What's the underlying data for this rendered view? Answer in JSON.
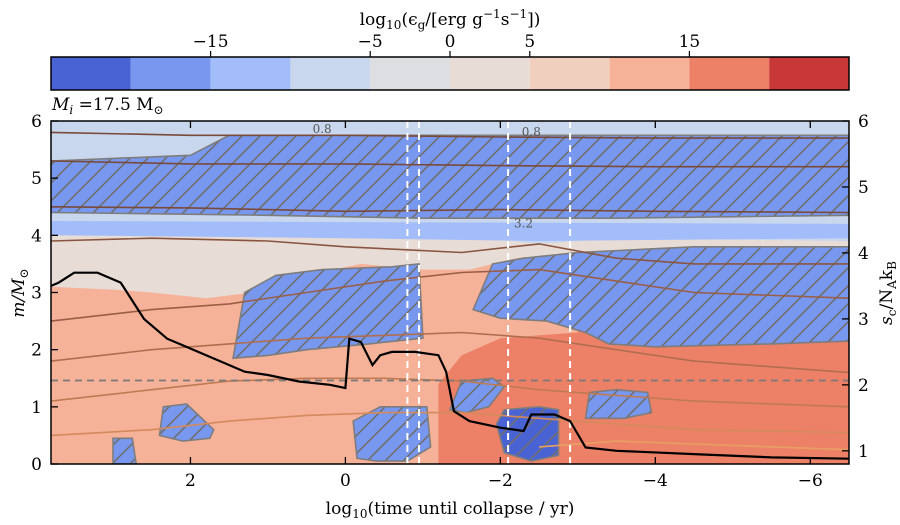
{
  "chart_data": {
    "type": "heatmap",
    "colorbar": {
      "label_main": "log",
      "label_sub": "10",
      "label_rest": "(ϵ",
      "label_g": "g",
      "label_units": "/[erg g",
      "label_sup1": "−1",
      "label_s": "s",
      "label_sup2": "−1",
      "label_end": "])",
      "range": [
        -25,
        25
      ],
      "levels": [
        -25,
        -20,
        -15,
        -10,
        -5,
        0,
        5,
        10,
        15,
        20,
        25
      ],
      "colors": [
        "#4a63d4",
        "#7898f0",
        "#a3bdfa",
        "#c8d6ee",
        "#dcdee2",
        "#e8dcd6",
        "#f0cfbf",
        "#f6b199",
        "#ec8168",
        "#c93838"
      ],
      "ticks": [
        {
          "value": -15,
          "label": "−15"
        },
        {
          "value": -5,
          "label": "−5"
        },
        {
          "value": 0,
          "label": "0"
        },
        {
          "value": 5,
          "label": "5"
        },
        {
          "value": 15,
          "label": "15"
        }
      ]
    },
    "panel_label_prefix": "M",
    "panel_label_sub": "i",
    "panel_label_value": " =17.5 M",
    "panel_label_sun": "⊙",
    "xlabel_main": "log",
    "xlabel_sub": "10",
    "xlabel_rest": "(time until collapse / yr)",
    "ylabel_main": "m/M",
    "ylabel_sun": "⊙",
    "y2label_main": "s",
    "y2label_sub": "c",
    "y2label_rest": "/N",
    "y2label_sub2": "A",
    "y2label_k": "k",
    "y2label_sub3": "B",
    "xlim": [
      3.8,
      -6.5
    ],
    "ylim": [
      0,
      6
    ],
    "y2lim": [
      0.8,
      6
    ],
    "xticks": [
      {
        "value": 2,
        "label": "2"
      },
      {
        "value": 0,
        "label": "0"
      },
      {
        "value": -2,
        "label": "−2"
      },
      {
        "value": -4,
        "label": "−4"
      },
      {
        "value": -6,
        "label": "−6"
      }
    ],
    "yticks": [
      {
        "value": 0,
        "label": "0"
      },
      {
        "value": 1,
        "label": "1"
      },
      {
        "value": 2,
        "label": "2"
      },
      {
        "value": 3,
        "label": "3"
      },
      {
        "value": 4,
        "label": "4"
      },
      {
        "value": 5,
        "label": "5"
      },
      {
        "value": 6,
        "label": "6"
      }
    ],
    "y2ticks": [
      {
        "value": 1,
        "label": "1"
      },
      {
        "value": 2,
        "label": "2"
      },
      {
        "value": 3,
        "label": "3"
      },
      {
        "value": 4,
        "label": "4"
      },
      {
        "value": 5,
        "label": "5"
      },
      {
        "value": 6,
        "label": "6"
      }
    ],
    "vertical_dashed_lines": [
      -0.8,
      -0.95,
      -2.1,
      -2.9
    ],
    "horizontal_dashed_line_y": 1.46,
    "contour_labels": [
      {
        "x": -2.4,
        "y": 5.95,
        "text": "0.8"
      },
      {
        "x": -2.3,
        "y": 4.35,
        "text": "3.2"
      },
      {
        "x": 0.3,
        "y": 6.0,
        "text": "0.8"
      }
    ],
    "regions": [
      {
        "level": 0.5,
        "color_index": 5,
        "poly": [
          [
            3.8,
            3.2
          ],
          [
            3.8,
            4.0
          ],
          [
            1.2,
            4.0
          ],
          [
            0.8,
            3.7
          ],
          [
            0,
            3.6
          ],
          [
            -1.0,
            3.5
          ],
          [
            -2.0,
            3.6
          ],
          [
            -2.5,
            3.8
          ],
          [
            -3.5,
            3.9
          ],
          [
            -6.5,
            3.9
          ],
          [
            -6.5,
            0
          ],
          [
            3.8,
            0
          ]
        ]
      },
      {
        "level": 0.5,
        "color_index": 7,
        "poly": [
          [
            3.8,
            0
          ],
          [
            3.8,
            3.1
          ],
          [
            3.0,
            3.05
          ],
          [
            2.5,
            3.0
          ],
          [
            1.8,
            2.9
          ],
          [
            1.2,
            3.0
          ],
          [
            0.5,
            3.3
          ],
          [
            -0.2,
            3.5
          ],
          [
            -1.0,
            3.4
          ],
          [
            -1.6,
            3.4
          ],
          [
            -2.2,
            3.6
          ],
          [
            -3.0,
            3.7
          ],
          [
            -6.5,
            3.7
          ],
          [
            -6.5,
            0
          ]
        ]
      },
      {
        "level": 0.5,
        "color_index": 8,
        "poly": [
          [
            -1.2,
            0
          ],
          [
            -1.2,
            1.4
          ],
          [
            -1.5,
            1.9
          ],
          [
            -2.0,
            2.2
          ],
          [
            -3.0,
            2.3
          ],
          [
            -4.0,
            2.1
          ],
          [
            -6.5,
            2.0
          ],
          [
            -6.5,
            0
          ]
        ]
      },
      {
        "level": 0.5,
        "color_index": 8,
        "poly": [
          [
            -3.0,
            3.0
          ],
          [
            -3.4,
            3.2
          ],
          [
            -4.2,
            3.3
          ],
          [
            -6.5,
            3.3
          ],
          [
            -6.5,
            0.4
          ],
          [
            -4.0,
            0.5
          ],
          [
            -3.0,
            0.6
          ]
        ]
      },
      {
        "level": 0.5,
        "color_index": 3,
        "poly": [
          [
            3.8,
            4.0
          ],
          [
            3.8,
            6.0
          ],
          [
            -6.5,
            6.0
          ],
          [
            -6.5,
            3.9
          ],
          [
            -3.5,
            3.95
          ],
          [
            -2.5,
            3.85
          ],
          [
            -1.8,
            3.95
          ],
          [
            -0.5,
            4.0
          ],
          [
            0.8,
            4.05
          ],
          [
            1.5,
            4.1
          ]
        ]
      },
      {
        "level": 0.5,
        "color_index": 2,
        "poly": [
          [
            3.8,
            4.0
          ],
          [
            3.8,
            4.25
          ],
          [
            -6.5,
            4.2
          ],
          [
            -6.5,
            3.95
          ],
          [
            -2.5,
            3.9
          ],
          [
            0,
            3.95
          ]
        ]
      }
    ],
    "hatched_regions": [
      {
        "color_index": 1,
        "poly": [
          [
            3.8,
            4.4
          ],
          [
            3.8,
            5.3
          ],
          [
            2.0,
            5.4
          ],
          [
            1.5,
            5.75
          ],
          [
            -6.5,
            5.75
          ],
          [
            -6.5,
            4.35
          ],
          [
            -3.5,
            4.3
          ],
          [
            -1.0,
            4.3
          ],
          [
            1.0,
            4.35
          ]
        ]
      },
      {
        "color_index": 1,
        "poly": [
          [
            1.45,
            1.85
          ],
          [
            1.3,
            3.0
          ],
          [
            0.9,
            3.3
          ],
          [
            0.3,
            3.4
          ],
          [
            -0.6,
            3.45
          ],
          [
            -0.95,
            3.5
          ],
          [
            -1.0,
            2.2
          ],
          [
            -0.3,
            2.1
          ],
          [
            0.5,
            2.0
          ],
          [
            1.0,
            1.9
          ]
        ]
      },
      {
        "color_index": 1,
        "poly": [
          [
            -1.65,
            2.7
          ],
          [
            -1.9,
            3.5
          ],
          [
            -2.3,
            3.6
          ],
          [
            -3.0,
            3.7
          ],
          [
            -4.5,
            3.8
          ],
          [
            -6.5,
            3.8
          ],
          [
            -6.5,
            2.15
          ],
          [
            -5.5,
            2.1
          ],
          [
            -4.0,
            2.05
          ],
          [
            -3.4,
            2.1
          ],
          [
            -3.1,
            2.3
          ],
          [
            -2.6,
            2.5
          ],
          [
            -2.0,
            2.55
          ]
        ]
      },
      {
        "color_index": 0,
        "poly": [
          [
            -1.95,
            0.7
          ],
          [
            -2.05,
            0.95
          ],
          [
            -2.5,
            1.0
          ],
          [
            -2.75,
            0.95
          ],
          [
            -2.75,
            0.15
          ],
          [
            -2.4,
            0.05
          ],
          [
            -2.05,
            0.2
          ]
        ]
      },
      {
        "color_index": 1,
        "poly": [
          [
            -1.35,
            0.95
          ],
          [
            -1.5,
            1.45
          ],
          [
            -1.9,
            1.5
          ],
          [
            -2.05,
            1.35
          ],
          [
            -1.85,
            1.0
          ],
          [
            -1.55,
            0.9
          ]
        ]
      },
      {
        "color_index": 1,
        "poly": [
          [
            -3.1,
            0.8
          ],
          [
            -3.15,
            1.25
          ],
          [
            -3.5,
            1.3
          ],
          [
            -3.9,
            1.25
          ],
          [
            -3.95,
            0.9
          ],
          [
            -3.6,
            0.8
          ]
        ]
      },
      {
        "color_index": 1,
        "poly": [
          [
            2.4,
            0.5
          ],
          [
            2.35,
            1.0
          ],
          [
            2.05,
            1.05
          ],
          [
            1.7,
            0.6
          ],
          [
            1.75,
            0.45
          ],
          [
            2.1,
            0.4
          ]
        ]
      },
      {
        "color_index": 1,
        "poly": [
          [
            -0.15,
            0.1
          ],
          [
            -0.1,
            0.75
          ],
          [
            -0.45,
            1.0
          ],
          [
            -1.05,
            1.0
          ],
          [
            -1.1,
            0.3
          ],
          [
            -0.8,
            0.05
          ],
          [
            -0.4,
            0.05
          ]
        ]
      },
      {
        "color_index": 1,
        "poly": [
          [
            3.0,
            0.0
          ],
          [
            3.0,
            0.45
          ],
          [
            2.75,
            0.45
          ],
          [
            2.7,
            0.0
          ]
        ]
      }
    ],
    "central_entropy_line": {
      "axis": "y2",
      "x": [
        3.8,
        3.7,
        3.5,
        3.2,
        2.9,
        2.6,
        2.3,
        2.1,
        1.9,
        1.6,
        1.3,
        1.0,
        0.6,
        0.2,
        0.0,
        -0.05,
        -0.2,
        -0.35,
        -0.45,
        -0.6,
        -0.9,
        -1.2,
        -1.3,
        -1.4,
        -1.6,
        -2.0,
        -2.3,
        -2.4,
        -2.7,
        -2.9,
        -3.1,
        -3.5,
        -4.5,
        -5.5,
        -6.5
      ],
      "y": [
        3.5,
        3.55,
        3.7,
        3.7,
        3.55,
        3.0,
        2.7,
        2.6,
        2.5,
        2.35,
        2.2,
        2.15,
        2.05,
        2.0,
        1.95,
        2.7,
        2.65,
        2.3,
        2.45,
        2.5,
        2.5,
        2.45,
        2.2,
        1.6,
        1.45,
        1.35,
        1.3,
        1.55,
        1.55,
        1.45,
        1.05,
        1.0,
        0.95,
        0.9,
        0.88
      ]
    },
    "mass_contours": [
      {
        "color": "#7a4a3a",
        "x": [
          3.8,
          2.0,
          0.0,
          -2.0,
          -4.0,
          -6.5
        ],
        "y": [
          5.8,
          5.75,
          5.75,
          5.72,
          5.7,
          5.7
        ]
      },
      {
        "color": "#7a4a3a",
        "x": [
          3.8,
          2.0,
          0.0,
          -2.0,
          -4.0,
          -6.5
        ],
        "y": [
          5.3,
          5.25,
          5.25,
          5.22,
          5.2,
          5.2
        ]
      },
      {
        "color": "#7a4a3a",
        "x": [
          3.8,
          2.0,
          0.0,
          -2.0,
          -4.0,
          -6.5
        ],
        "y": [
          4.5,
          4.48,
          4.42,
          4.45,
          4.42,
          4.4
        ]
      },
      {
        "color": "#8a5540",
        "x": [
          3.8,
          2.5,
          1.0,
          0.0,
          -1.5,
          -2.5,
          -3.5,
          -4.5,
          -6.5
        ],
        "y": [
          3.9,
          3.95,
          3.9,
          3.8,
          3.7,
          3.85,
          3.6,
          3.5,
          3.5
        ]
      },
      {
        "color": "#9a5e46",
        "x": [
          3.8,
          2.5,
          1.5,
          0.5,
          -0.5,
          -1.5,
          -2.5,
          -3.5,
          -4.5,
          -6.5
        ],
        "y": [
          2.5,
          2.7,
          2.8,
          3.0,
          3.2,
          3.35,
          3.4,
          3.2,
          3.0,
          2.9
        ]
      },
      {
        "color": "#b06e4e",
        "x": [
          3.8,
          2.5,
          1.5,
          0.5,
          -0.5,
          -1.5,
          -2.5,
          -3.5,
          -4.5,
          -6.5
        ],
        "y": [
          1.8,
          2.0,
          2.1,
          2.2,
          2.25,
          2.3,
          2.2,
          2.0,
          1.8,
          1.6
        ]
      },
      {
        "color": "#c07a52",
        "x": [
          3.8,
          2.5,
          1.5,
          0.5,
          -0.5,
          -1.5,
          -2.5,
          -3.5,
          -4.5,
          -6.5
        ],
        "y": [
          1.1,
          1.3,
          1.45,
          1.5,
          1.5,
          1.45,
          1.3,
          1.2,
          1.1,
          1.0
        ]
      },
      {
        "color": "#d48a5a",
        "x": [
          3.8,
          2.5,
          1.5,
          0.5,
          -0.5,
          -1.5,
          -2.5,
          -3.5,
          -4.5,
          -6.5
        ],
        "y": [
          0.5,
          0.6,
          0.75,
          0.85,
          0.9,
          0.9,
          0.8,
          0.7,
          0.6,
          0.55
        ]
      },
      {
        "color": "#e8a062",
        "x": [
          -2.5,
          -3.5,
          -4.5,
          -5.5,
          -6.5
        ],
        "y": [
          0.3,
          0.4,
          0.35,
          0.3,
          0.25
        ]
      }
    ]
  }
}
